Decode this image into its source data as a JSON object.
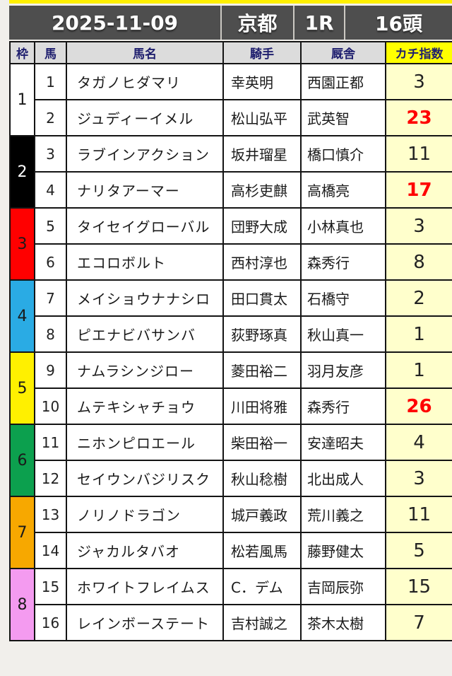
{
  "header": {
    "date": "2025-11-09",
    "track": "京都",
    "race": "1R",
    "field_size": "16頭"
  },
  "columns": {
    "frame": "枠",
    "number": "馬",
    "horse": "馬名",
    "jockey": "騎手",
    "stable": "厩舎",
    "index": "カチ指数"
  },
  "frames": [
    {
      "no": "1",
      "color": "#ffffff",
      "text": "#1a1a1a"
    },
    {
      "no": "2",
      "color": "#000000",
      "text": "#ffffff"
    },
    {
      "no": "3",
      "color": "#ff0000",
      "text": "#1a1a1a"
    },
    {
      "no": "4",
      "color": "#2aabe4",
      "text": "#1a1a1a"
    },
    {
      "no": "5",
      "color": "#fff000",
      "text": "#1a1a1a"
    },
    {
      "no": "6",
      "color": "#0ca04e",
      "text": "#1a1a1a"
    },
    {
      "no": "7",
      "color": "#f7a800",
      "text": "#1a1a1a"
    },
    {
      "no": "8",
      "color": "#f49bf0",
      "text": "#1a1a1a"
    }
  ],
  "horses": [
    {
      "num": "1",
      "name": "タガノヒダマリ",
      "jockey": "幸英明",
      "stable": "西園正都",
      "index": "3",
      "hot": false
    },
    {
      "num": "2",
      "name": "ジュディーイメル",
      "jockey": "松山弘平",
      "stable": "武英智",
      "index": "23",
      "hot": true
    },
    {
      "num": "3",
      "name": "ラブインアクション",
      "jockey": "坂井瑠星",
      "stable": "橋口慎介",
      "index": "11",
      "hot": false
    },
    {
      "num": "4",
      "name": "ナリタアーマー",
      "jockey": "高杉吏麒",
      "stable": "高橋亮",
      "index": "17",
      "hot": true
    },
    {
      "num": "5",
      "name": "タイセイグローバル",
      "jockey": "団野大成",
      "stable": "小林真也",
      "index": "3",
      "hot": false
    },
    {
      "num": "6",
      "name": "エコロボルト",
      "jockey": "西村淳也",
      "stable": "森秀行",
      "index": "8",
      "hot": false
    },
    {
      "num": "7",
      "name": "メイショウナナシロ",
      "jockey": "田口貫太",
      "stable": "石橋守",
      "index": "2",
      "hot": false
    },
    {
      "num": "8",
      "name": "ピエナビバサンバ",
      "jockey": "荻野琢真",
      "stable": "秋山真一",
      "index": "1",
      "hot": false
    },
    {
      "num": "9",
      "name": "ナムラシンジロー",
      "jockey": "菱田裕二",
      "stable": "羽月友彦",
      "index": "1",
      "hot": false
    },
    {
      "num": "10",
      "name": "ムテキシャチョウ",
      "jockey": "川田将雅",
      "stable": "森秀行",
      "index": "26",
      "hot": true
    },
    {
      "num": "11",
      "name": "ニホンピロエール",
      "jockey": "柴田裕一",
      "stable": "安達昭夫",
      "index": "4",
      "hot": false
    },
    {
      "num": "12",
      "name": "セイウンバジリスク",
      "jockey": "秋山稔樹",
      "stable": "北出成人",
      "index": "3",
      "hot": false
    },
    {
      "num": "13",
      "name": "ノリノドラゴン",
      "jockey": "城戸義政",
      "stable": "荒川義之",
      "index": "11",
      "hot": false
    },
    {
      "num": "14",
      "name": "ジャカルタバオ",
      "jockey": "松若風馬",
      "stable": "藤野健太",
      "index": "5",
      "hot": false
    },
    {
      "num": "15",
      "name": "ホワイトフレイムス",
      "jockey": "C．デム",
      "stable": "吉岡辰弥",
      "index": "15",
      "hot": false
    },
    {
      "num": "16",
      "name": "レインボーステート",
      "jockey": "吉村誠之",
      "stable": "茶木太樹",
      "index": "7",
      "hot": false
    }
  ],
  "colors": {
    "accent_strip": "#fff000",
    "title_bar_bg": "#4e4e4e",
    "col_header_bg": "#dcdcdc",
    "col_header_text": "#1e1e6e",
    "index_header_bg": "#ffff00",
    "index_cell_bg": "#ffffcc",
    "hot_value_red": "#ff0000",
    "grid_line": "#141414"
  }
}
